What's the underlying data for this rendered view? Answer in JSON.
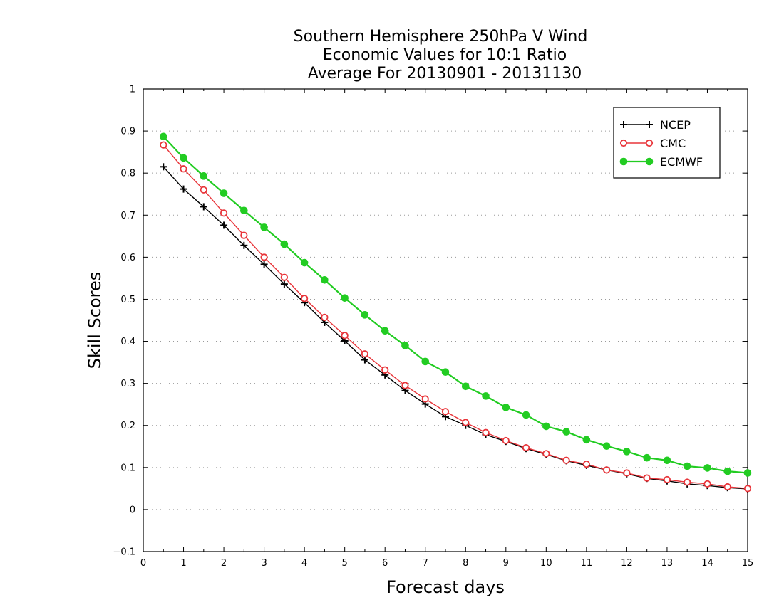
{
  "chart_data": {
    "type": "line",
    "title_lines": [
      "Southern Hemisphere 250hPa V Wind",
      "Economic Values for 10:1 Ratio",
      "Average For 20130901 - 20131130"
    ],
    "xlabel": "Forecast days",
    "ylabel": "Skill Scores",
    "xlim": [
      0,
      15
    ],
    "ylim": [
      -0.1,
      1
    ],
    "x_ticks": [
      "0",
      "1",
      "2",
      "3",
      "4",
      "5",
      "6",
      "7",
      "8",
      "9",
      "10",
      "11",
      "12",
      "13",
      "14",
      "15"
    ],
    "y_ticks": [
      "−0.1",
      "0",
      "0.1",
      "0.2",
      "0.3",
      "0.4",
      "0.5",
      "0.6",
      "0.7",
      "0.8",
      "0.9",
      "1"
    ],
    "grid": true,
    "legend_position": "top-right",
    "x": [
      0.5,
      1,
      1.5,
      2,
      2.5,
      3,
      3.5,
      4,
      4.5,
      5,
      5.5,
      6,
      6.5,
      7,
      7.5,
      8,
      8.5,
      9,
      9.5,
      10,
      10.5,
      11,
      11.5,
      12,
      12.5,
      13,
      13.5,
      14,
      14.5,
      15
    ],
    "series": [
      {
        "name": "NCEP",
        "color": "#000000",
        "marker": "plus",
        "values": [
          0.815,
          0.762,
          0.72,
          0.676,
          0.628,
          0.583,
          0.536,
          0.492,
          0.445,
          0.401,
          0.356,
          0.32,
          0.283,
          0.251,
          0.221,
          0.2,
          0.178,
          0.162,
          0.145,
          0.131,
          0.116,
          0.105,
          0.094,
          0.085,
          0.074,
          0.068,
          0.061,
          0.057,
          0.052,
          0.049
        ]
      },
      {
        "name": "CMC",
        "color": "#e8353a",
        "marker": "open-circle",
        "values": [
          0.867,
          0.81,
          0.76,
          0.705,
          0.652,
          0.6,
          0.552,
          0.502,
          0.457,
          0.414,
          0.37,
          0.332,
          0.295,
          0.263,
          0.233,
          0.207,
          0.183,
          0.164,
          0.147,
          0.133,
          0.117,
          0.108,
          0.094,
          0.087,
          0.075,
          0.071,
          0.065,
          0.061,
          0.054,
          0.05
        ]
      },
      {
        "name": "ECMWF",
        "color": "#22cc22",
        "marker": "filled-circle",
        "values": [
          0.887,
          0.836,
          0.793,
          0.752,
          0.711,
          0.671,
          0.631,
          0.587,
          0.546,
          0.503,
          0.463,
          0.425,
          0.39,
          0.352,
          0.327,
          0.293,
          0.27,
          0.243,
          0.225,
          0.198,
          0.185,
          0.166,
          0.151,
          0.138,
          0.123,
          0.117,
          0.103,
          0.099,
          0.091,
          0.087
        ]
      }
    ]
  }
}
